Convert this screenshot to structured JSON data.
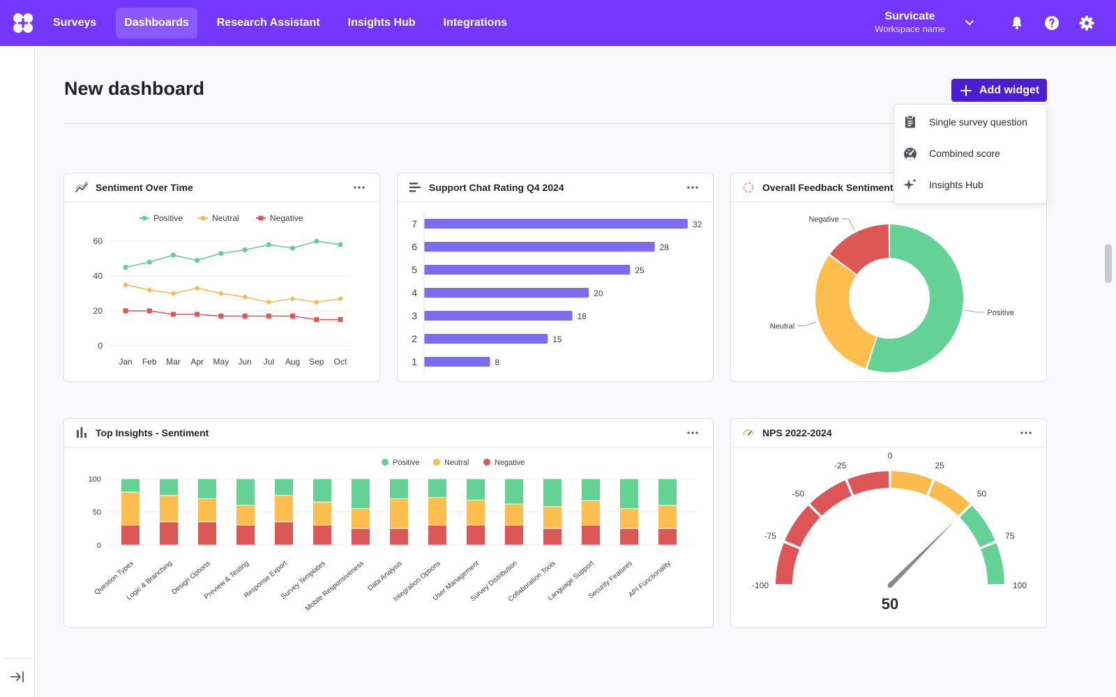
{
  "nav": {
    "items": [
      {
        "label": "Surveys",
        "active": false
      },
      {
        "label": "Dashboards",
        "active": true
      },
      {
        "label": "Research Assistant",
        "active": false
      },
      {
        "label": "Insights Hub",
        "active": false
      },
      {
        "label": "Integrations",
        "active": false
      }
    ],
    "workspace_title": "Survicate",
    "workspace_subtitle": "Workspace name",
    "icons": [
      "bell-icon",
      "help-icon",
      "gear-icon"
    ],
    "accent": "#7437ff"
  },
  "page": {
    "title": "New dashboard",
    "add_widget_label": "Add widget",
    "add_menu": [
      {
        "label": "Single survey question",
        "icon": "clipboard-icon"
      },
      {
        "label": "Combined score",
        "icon": "gauge-icon"
      },
      {
        "label": "Insights Hub",
        "icon": "sparkle-icon"
      }
    ]
  },
  "widgets": {
    "sentiment_over_time": {
      "title": "Sentiment Over Time"
    },
    "support_chat": {
      "title": "Support Chat Rating Q4 2024"
    },
    "overall_feedback": {
      "title": "Overall Feedback Sentiment"
    },
    "top_insights": {
      "title": "Top Insights - Sentiment"
    },
    "nps": {
      "title": "NPS 2022-2024"
    }
  },
  "chart_data": [
    {
      "id": "sentiment_over_time",
      "type": "line",
      "categories": [
        "Jan",
        "Feb",
        "Mar",
        "Apr",
        "May",
        "Jun",
        "Jul",
        "Aug",
        "Sep",
        "Oct"
      ],
      "series": [
        {
          "name": "Positive",
          "color": "#5fcf8f",
          "values": [
            45,
            48,
            52,
            49,
            53,
            55,
            58,
            56,
            60,
            58
          ]
        },
        {
          "name": "Neutral",
          "color": "#f7b94a",
          "values": [
            35,
            32,
            30,
            33,
            30,
            28,
            25,
            27,
            25,
            27
          ]
        },
        {
          "name": "Negative",
          "color": "#dd5555",
          "values": [
            20,
            20,
            18,
            18,
            17,
            17,
            17,
            17,
            15,
            15
          ]
        }
      ],
      "yticks": [
        "0",
        "20",
        "40",
        "60"
      ],
      "ylim": [
        0,
        65
      ],
      "legend": "top",
      "grid": true
    },
    {
      "id": "support_chat",
      "type": "bar",
      "orientation": "horizontal",
      "categories": [
        "7",
        "6",
        "5",
        "4",
        "3",
        "2",
        "1"
      ],
      "values": [
        32,
        28,
        25,
        20,
        18,
        15,
        8
      ],
      "color": "#7b6cf0",
      "xlim": [
        0,
        32
      ]
    },
    {
      "id": "overall_feedback",
      "type": "pie",
      "donut": true,
      "labels": [
        "Positive",
        "Neutral",
        "Negative"
      ],
      "values": [
        55,
        30,
        15
      ],
      "colors": [
        "#64d294",
        "#fdbe4d",
        "#dd5757"
      ]
    },
    {
      "id": "top_insights",
      "type": "bar",
      "stacked": true,
      "categories": [
        "Question Types",
        "Logic & Branching",
        "Design Options",
        "Preview & Testing",
        "Response Export",
        "Survey Templates",
        "Mobile Responsiveness",
        "Data Analysis",
        "Integration Options",
        "User Management",
        "Survey Distribution",
        "Collaboration Tools",
        "Language Support",
        "Security Features",
        "API Functionality"
      ],
      "series": [
        {
          "name": "Negative",
          "color": "#dd5757",
          "values": [
            30,
            35,
            35,
            30,
            35,
            30,
            25,
            25,
            30,
            30,
            30,
            25,
            30,
            25,
            25
          ]
        },
        {
          "name": "Neutral",
          "color": "#fdbe4d",
          "values": [
            50,
            40,
            35,
            30,
            40,
            35,
            30,
            45,
            42,
            38,
            32,
            33,
            37,
            30,
            35
          ]
        },
        {
          "name": "Positive",
          "color": "#64d294",
          "values": [
            20,
            25,
            30,
            40,
            25,
            35,
            45,
            30,
            28,
            32,
            38,
            42,
            33,
            45,
            40
          ]
        }
      ],
      "legend_order": [
        "Positive",
        "Neutral",
        "Negative"
      ],
      "yticks": [
        "0",
        "50",
        "100"
      ],
      "ylim": [
        0,
        100
      ],
      "grid": true
    },
    {
      "id": "nps",
      "type": "gauge",
      "value": 50,
      "value_label": "50",
      "min": -100,
      "max": 100,
      "ticks": [
        "-100",
        "-75",
        "-50",
        "-25",
        "0",
        "25",
        "50",
        "75",
        "100"
      ],
      "bands": [
        {
          "from": -100,
          "to": 0,
          "color": "#dd5555"
        },
        {
          "from": 0,
          "to": 50,
          "color": "#fcbc4c"
        },
        {
          "from": 50,
          "to": 100,
          "color": "#64d294"
        }
      ],
      "needle_color": "#888888"
    }
  ]
}
